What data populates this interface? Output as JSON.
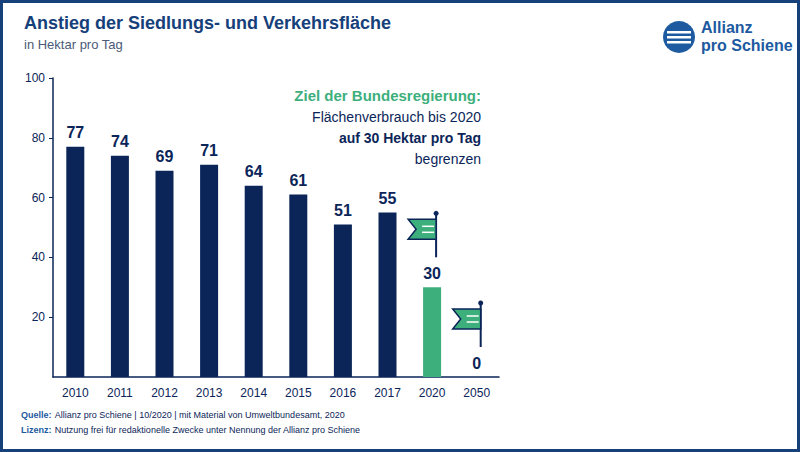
{
  "chart_data": {
    "type": "bar",
    "title": "Anstieg der Siedlungs- und Verkehrsfläche",
    "subtitle": "in Hektar pro Tag",
    "categories": [
      "2010",
      "2011",
      "2012",
      "2013",
      "2014",
      "2015",
      "2016",
      "2017",
      "2020",
      "2050"
    ],
    "values": [
      77,
      74,
      69,
      71,
      64,
      61,
      51,
      55,
      30,
      0
    ],
    "colors": [
      "#0b2559",
      "#0b2559",
      "#0b2559",
      "#0b2559",
      "#0b2559",
      "#0b2559",
      "#0b2559",
      "#0b2559",
      "#3daf7c",
      "#3daf7c"
    ],
    "ylim": [
      0,
      100
    ],
    "yticks": [
      20,
      40,
      60,
      80,
      100
    ],
    "grid": false,
    "data_labels": true,
    "annotation": {
      "heading": "Ziel der Bundesregierung:",
      "lines": [
        "Flächenverbrauch bis 2020",
        "auf 30 Hektar pro Tag",
        "begrenzen"
      ]
    },
    "logo": [
      "Allianz",
      "pro Schiene"
    ],
    "source": {
      "label": "Quelle:",
      "text": "Allianz pro Schiene | 10/2020 | mit Material von Umweltbundesamt, 2020"
    },
    "license": {
      "label": "Lizenz:",
      "text": "Nutzung frei für redaktionelle Zwecke unter Nennung der Allianz pro Schiene"
    }
  }
}
